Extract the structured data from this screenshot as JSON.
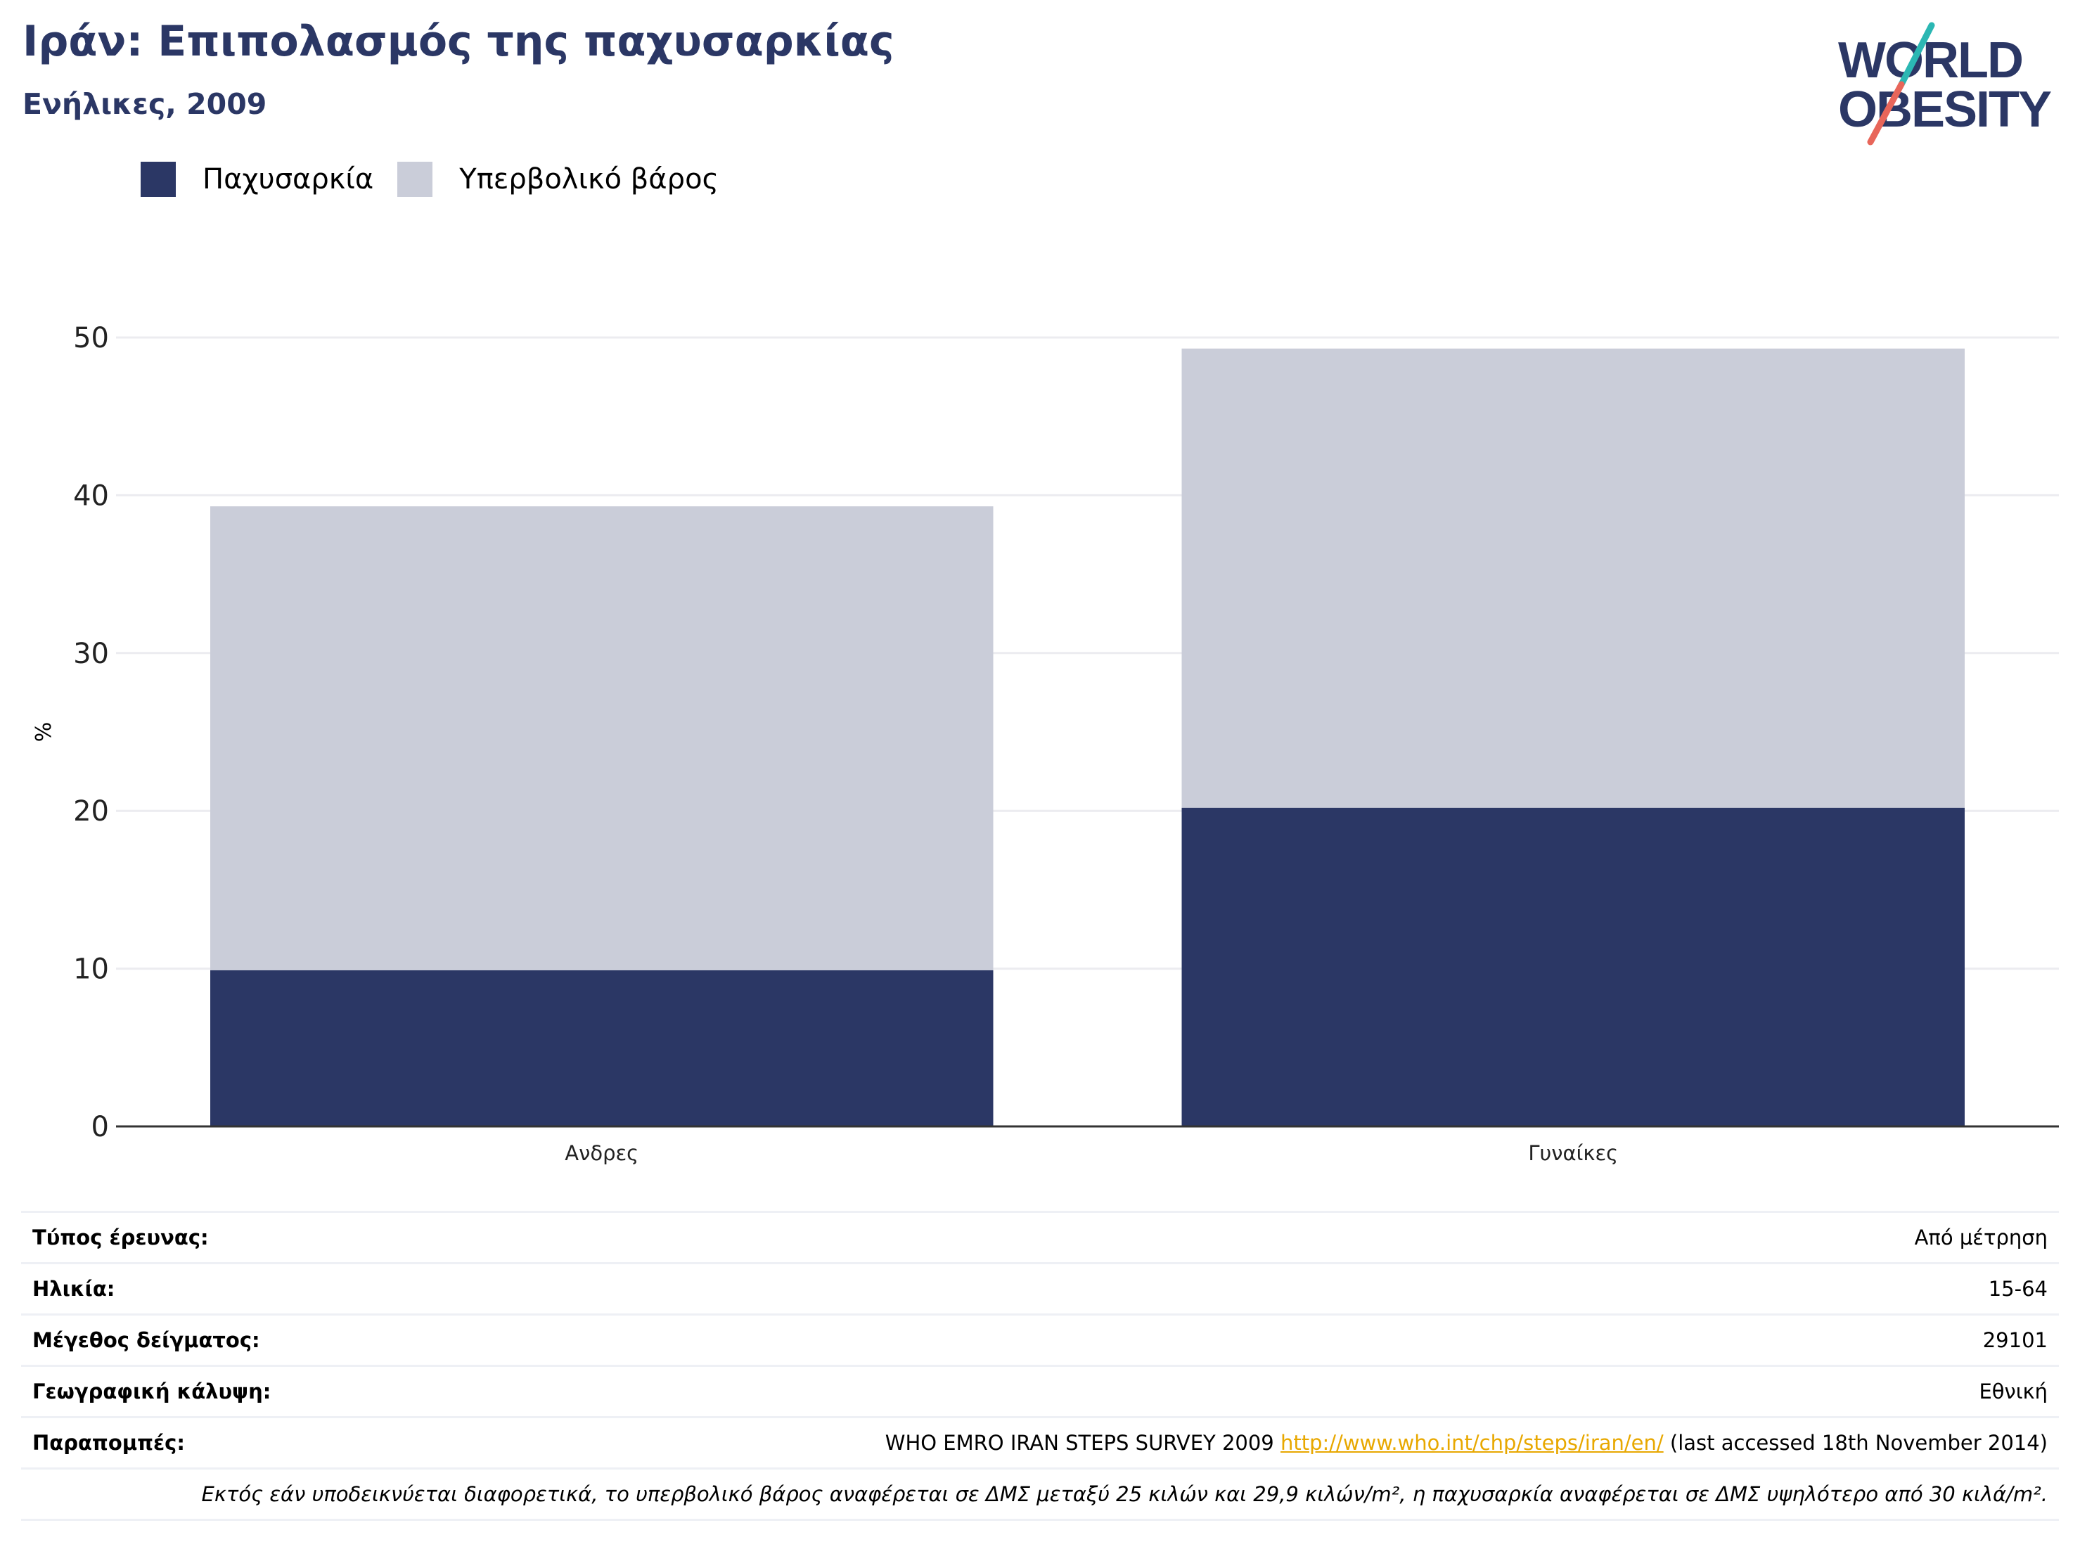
{
  "header": {
    "title": "Ιράν: Επιπολασμός της παχυσαρκίας",
    "subtitle": "Ενήλικες, 2009"
  },
  "logo": {
    "line1": "WORLD",
    "line2": "OBESITY"
  },
  "legend": [
    {
      "label": "Παχυσαρκία",
      "color": "#2b3765"
    },
    {
      "label": "Υπερβολικό βάρος",
      "color": "#cacdd9"
    }
  ],
  "chart_data": {
    "type": "bar",
    "stacked": true,
    "categories": [
      "Ανδρες",
      "Γυναίκες"
    ],
    "series": [
      {
        "name": "Παχυσαρκία",
        "values": [
          9.9,
          20.2
        ],
        "color": "#2b3765"
      },
      {
        "name": "Υπερβολικό βάρος",
        "values": [
          29.4,
          29.1
        ],
        "color": "#cacdd9"
      }
    ],
    "ylabel": "%",
    "ylim": [
      0,
      50
    ],
    "yticks": [
      0,
      10,
      20,
      30,
      40,
      50
    ],
    "grid": true,
    "legend_position": "top-left"
  },
  "info": {
    "rows": [
      {
        "label": "Τύπος έρευνας:",
        "value": "Από μέτρηση"
      },
      {
        "label": "Ηλικία:",
        "value": "15-64"
      },
      {
        "label": "Μέγεθος δείγματος:",
        "value": "29101"
      },
      {
        "label": "Γεωγραφική κάλυψη:",
        "value": "Εθνική"
      }
    ],
    "reference": {
      "label": "Παραπομπές:",
      "text_before": "WHO EMRO IRAN STEPS SURVEY 2009 ",
      "link": "http://www.who.int/chp/steps/iran/en/",
      "text_after": " (last accessed 18th November 2014)"
    },
    "footnote": "Εκτός εάν υποδεικνύεται διαφορετικά, το υπερβολικό βάρος αναφέρεται σε ΔΜΣ μεταξύ 25 κιλών και 29,9 κιλών/m², η παχυσαρκία αναφέρεται σε ΔΜΣ υψηλότερο από 30 κιλά/m²."
  },
  "colors": {
    "accent_teal": "#2bb7b3",
    "accent_coral": "#e8665a",
    "brand_navy": "#2b3765"
  }
}
